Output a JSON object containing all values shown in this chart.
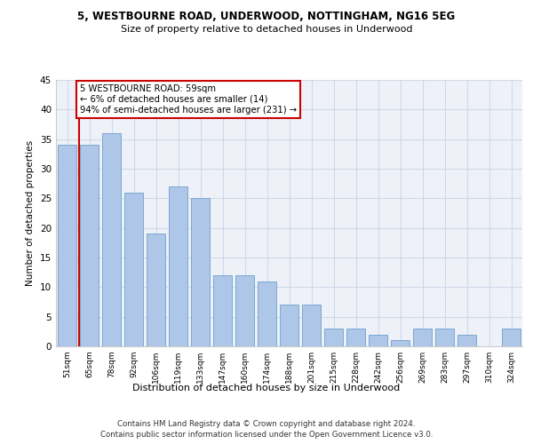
{
  "title1": "5, WESTBOURNE ROAD, UNDERWOOD, NOTTINGHAM, NG16 5EG",
  "title2": "Size of property relative to detached houses in Underwood",
  "xlabel": "Distribution of detached houses by size in Underwood",
  "ylabel": "Number of detached properties",
  "categories": [
    "51sqm",
    "65sqm",
    "78sqm",
    "92sqm",
    "106sqm",
    "119sqm",
    "133sqm",
    "147sqm",
    "160sqm",
    "174sqm",
    "188sqm",
    "201sqm",
    "215sqm",
    "228sqm",
    "242sqm",
    "256sqm",
    "269sqm",
    "283sqm",
    "297sqm",
    "310sqm",
    "324sqm"
  ],
  "values": [
    34,
    34,
    36,
    26,
    19,
    27,
    25,
    12,
    12,
    11,
    7,
    7,
    3,
    3,
    2,
    1,
    3,
    3,
    2,
    0,
    3
  ],
  "bar_color": "#aec6e8",
  "bar_edge_color": "#7aa8d0",
  "annotation_line1": "5 WESTBOURNE ROAD: 59sqm",
  "annotation_line2": "← 6% of detached houses are smaller (14)",
  "annotation_line3": "94% of semi-detached houses are larger (231) →",
  "annotation_box_color": "#ffffff",
  "annotation_box_edge_color": "#cc0000",
  "grid_color": "#d0d8e8",
  "background_color": "#eef2f8",
  "footer1": "Contains HM Land Registry data © Crown copyright and database right 2024.",
  "footer2": "Contains public sector information licensed under the Open Government Licence v3.0.",
  "ylim": [
    0,
    45
  ],
  "yticks": [
    0,
    5,
    10,
    15,
    20,
    25,
    30,
    35,
    40,
    45
  ]
}
